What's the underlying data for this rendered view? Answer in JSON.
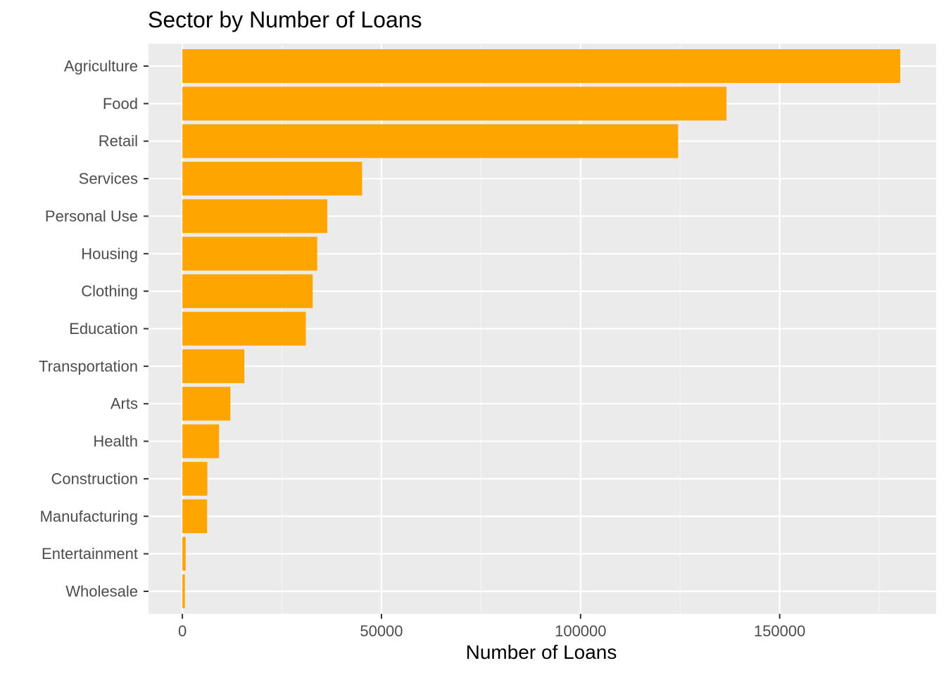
{
  "chart_data": {
    "type": "bar",
    "orientation": "horizontal",
    "title": "Sector by Number of Loans",
    "xlabel": "Number of Loans",
    "ylabel": "",
    "categories": [
      "Agriculture",
      "Food",
      "Retail",
      "Services",
      "Personal Use",
      "Housing",
      "Clothing",
      "Education",
      "Transportation",
      "Arts",
      "Health",
      "Construction",
      "Manufacturing",
      "Entertainment",
      "Wholesale"
    ],
    "values": [
      180300,
      136650,
      124500,
      45140,
      36390,
      33880,
      32740,
      31010,
      15570,
      12060,
      9220,
      6270,
      6210,
      830,
      630
    ],
    "xlim": [
      -8500,
      189300
    ],
    "xticks": [
      0,
      50000,
      100000,
      150000
    ],
    "xtick_labels": [
      "0",
      "50000",
      "100000",
      "150000"
    ],
    "grid": true,
    "legend": "none",
    "colors": {
      "bar": "#FFA500",
      "panel_background": "#EBEBEB",
      "grid_major": "#FFFFFF",
      "grid_minor": "#F5F5F5",
      "tick_label": "#4D4D4D",
      "tick_mark": "#333333"
    }
  }
}
